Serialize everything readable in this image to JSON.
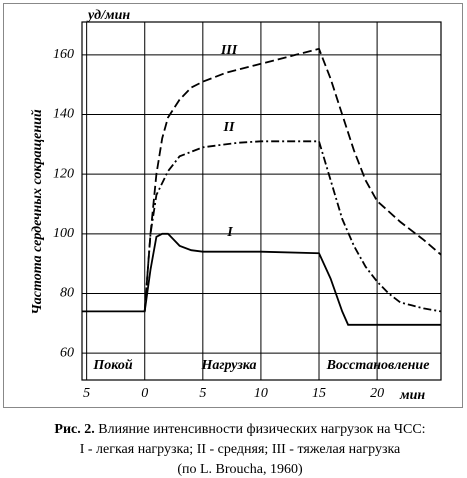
{
  "chart_data": {
    "type": "line",
    "y_unit": "уд/мин",
    "x_unit": "мин",
    "ylabel": "Частота сердечных сокращений",
    "xlim": [
      -5.4,
      25.5
    ],
    "ylim": [
      51,
      171
    ],
    "xticks": [
      {
        "value": -5,
        "label": "5"
      },
      0,
      5,
      10,
      15,
      20
    ],
    "yticks": [
      60,
      80,
      100,
      120,
      140,
      160
    ],
    "grid": true,
    "phases": [
      "Покой",
      "Нагрузка",
      "Восстановление"
    ],
    "series": [
      {
        "name": "I",
        "color": "#000000",
        "dash": "solid",
        "x": [
          -5.4,
          0,
          0.5,
          1,
          1.5,
          2,
          2.5,
          3,
          4,
          5,
          10,
          15,
          16,
          17,
          17.5,
          20,
          25.5
        ],
        "values": [
          74,
          74,
          88,
          99,
          100,
          100,
          98,
          96,
          94.5,
          94,
          94,
          93.5,
          85,
          74,
          69.5,
          69.5,
          69.5
        ]
      },
      {
        "name": "II",
        "color": "#000000",
        "dash": "dashdot",
        "x": [
          0,
          0.5,
          1,
          2,
          3,
          5,
          8,
          10,
          15,
          16,
          17,
          18,
          19,
          20,
          21,
          22,
          23,
          24,
          25.5
        ],
        "values": [
          74,
          100,
          113,
          121,
          126,
          129,
          130.5,
          131,
          131,
          118,
          105,
          96,
          89,
          84,
          80,
          77,
          76,
          75,
          74
        ]
      },
      {
        "name": "III",
        "color": "#000000",
        "dash": "dashed",
        "x": [
          0,
          0.5,
          1,
          1.5,
          2,
          3,
          4,
          5,
          7,
          10,
          13,
          15,
          16,
          17,
          18,
          19,
          20,
          22,
          24,
          25.5
        ],
        "values": [
          74,
          100,
          120,
          132,
          139,
          145,
          149,
          151,
          154,
          157,
          160,
          162,
          152,
          140,
          128,
          118,
          111,
          104,
          98,
          93
        ]
      }
    ],
    "caption": {
      "label": "Рис. 2.",
      "line1": "Влияние интенсивности физических нагрузок на ЧСС:",
      "line2": "I - легкая нагрузка; II - средняя; III - тяжелая нагрузка",
      "line3": "(по L. Broucha, 1960)"
    }
  }
}
